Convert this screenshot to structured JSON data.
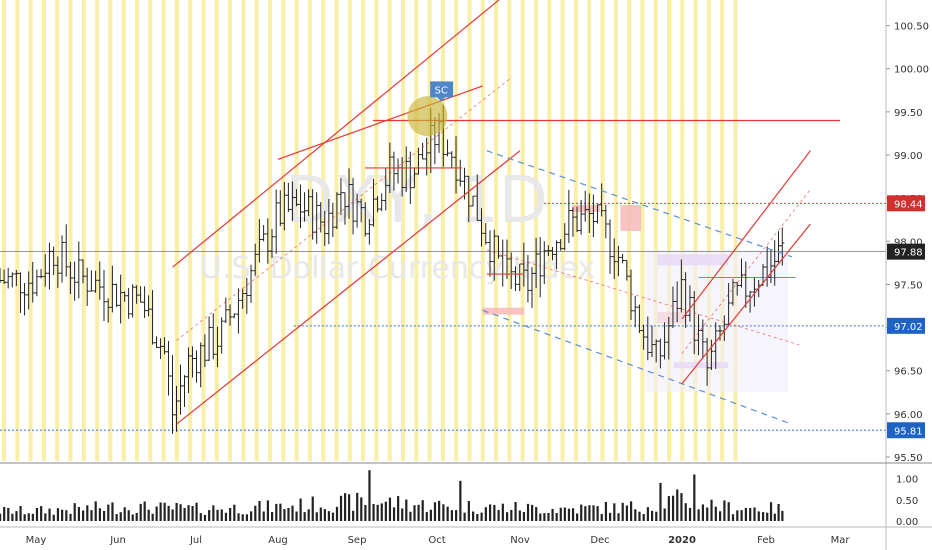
{
  "chart_data": {
    "type": "candlestick",
    "symbol_watermark": "DXY, 1D",
    "symbol_subtitle_watermark": "U.S. Dollar Currency Index",
    "price_axis": {
      "ticks": [
        "100.50",
        "100.00",
        "99.50",
        "99.00",
        "98.50",
        "98.00",
        "97.50",
        "97.00",
        "96.50",
        "96.00",
        "95.50"
      ],
      "range": [
        95.5,
        100.75
      ]
    },
    "volume_axis": {
      "ticks": [
        "1.00",
        "0.50",
        "0.00"
      ],
      "range": [
        0,
        1.3
      ]
    },
    "time_axis": {
      "labels": [
        "May",
        "Jun",
        "Jul",
        "Aug",
        "Sep",
        "Oct",
        "Nov",
        "Dec",
        "2020",
        "Feb",
        "Mar"
      ],
      "bold_label": "2020"
    },
    "price_tags": [
      {
        "label": "98.44",
        "value": 98.44,
        "color": "#d32f2f"
      },
      {
        "label": "97.88",
        "value": 97.88,
        "color": "#222222"
      },
      {
        "label": "97.02",
        "value": 97.02,
        "color": "#1e63c4"
      },
      {
        "label": "95.81",
        "value": 95.81,
        "color": "#1e63c4"
      }
    ],
    "annotation": {
      "label": "SC",
      "price": 99.76,
      "month_pos": 5.05
    },
    "trading_days": 190,
    "colors": {
      "candle": "#222222",
      "vertical_bands": "#f7e98a",
      "channel_lines": "#e53935",
      "dashed_channel": "#5b8fd6",
      "highlight_circle": "#c9b53b",
      "zone_red": "#f6b8b8",
      "zone_purple": "#d9b8f2"
    },
    "price_path_anchors": [
      [
        0.0,
        97.55
      ],
      [
        0.2,
        97.9
      ],
      [
        0.5,
        97.6
      ],
      [
        1.0,
        97.4
      ],
      [
        1.3,
        97.3
      ],
      [
        1.6,
        96.7
      ],
      [
        1.7,
        96.0
      ],
      [
        1.9,
        96.6
      ],
      [
        2.3,
        96.9
      ],
      [
        2.7,
        97.7
      ],
      [
        3.0,
        98.3
      ],
      [
        3.3,
        98.4
      ],
      [
        3.6,
        98.2
      ],
      [
        3.8,
        98.6
      ],
      [
        4.1,
        98.3
      ],
      [
        4.4,
        98.8
      ],
      [
        4.7,
        98.8
      ],
      [
        5.0,
        99.25
      ],
      [
        5.2,
        99.0
      ],
      [
        5.5,
        98.3
      ],
      [
        5.8,
        97.6
      ],
      [
        6.1,
        97.5
      ],
      [
        6.3,
        97.9
      ],
      [
        6.6,
        98.2
      ],
      [
        6.9,
        98.3
      ],
      [
        7.2,
        97.9
      ],
      [
        7.5,
        97.0
      ],
      [
        7.7,
        96.6
      ],
      [
        8.0,
        97.5
      ],
      [
        8.3,
        96.5
      ],
      [
        8.6,
        97.3
      ],
      [
        8.9,
        97.6
      ],
      [
        9.1,
        97.75
      ],
      [
        9.2,
        97.9
      ]
    ],
    "volume_path_anchors": [
      [
        0.0,
        0.25
      ],
      [
        1.0,
        0.35
      ],
      [
        2.0,
        0.3
      ],
      [
        3.0,
        0.35
      ],
      [
        3.8,
        0.45
      ],
      [
        4.2,
        0.5
      ],
      [
        4.8,
        0.4
      ],
      [
        5.5,
        0.35
      ],
      [
        6.5,
        0.3
      ],
      [
        7.5,
        0.35
      ],
      [
        8.0,
        0.55
      ],
      [
        8.5,
        0.35
      ],
      [
        9.2,
        0.3
      ]
    ],
    "volume_spikes": [
      [
        4.15,
        1.2
      ],
      [
        5.3,
        0.95
      ],
      [
        7.75,
        0.9
      ],
      [
        8.15,
        1.1
      ]
    ]
  }
}
